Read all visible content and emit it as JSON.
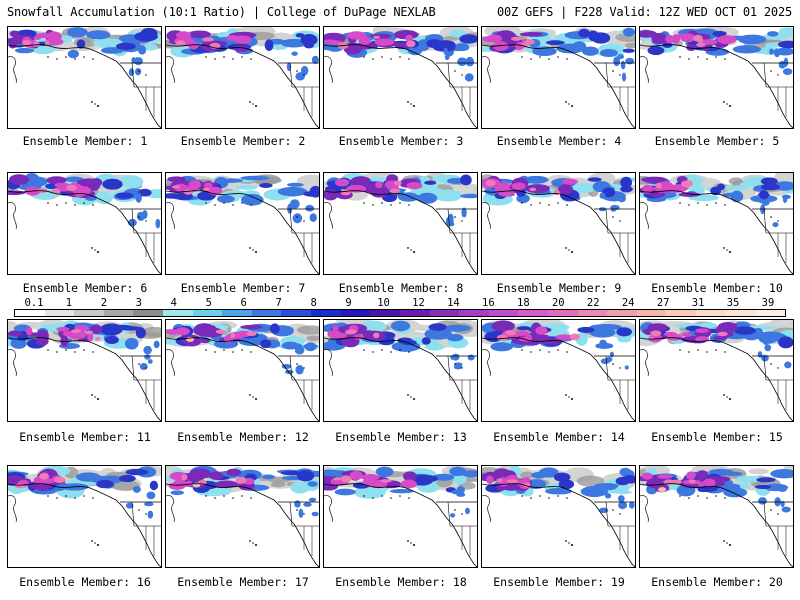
{
  "header": {
    "title_left": "Snowfall Accumulation (10:1 Ratio) | College of DuPage NEXLAB",
    "title_right": "00Z GEFS | F228 Valid: 12Z WED OCT 01 2025"
  },
  "panels": [
    {
      "label": "Ensemble Member: 1"
    },
    {
      "label": "Ensemble Member: 2"
    },
    {
      "label": "Ensemble Member: 3"
    },
    {
      "label": "Ensemble Member: 4"
    },
    {
      "label": "Ensemble Member: 5"
    },
    {
      "label": "Ensemble Member: 6"
    },
    {
      "label": "Ensemble Member: 7"
    },
    {
      "label": "Ensemble Member: 8"
    },
    {
      "label": "Ensemble Member: 9"
    },
    {
      "label": "Ensemble Member: 10"
    },
    {
      "label": "Ensemble Member: 11"
    },
    {
      "label": "Ensemble Member: 12"
    },
    {
      "label": "Ensemble Member: 13"
    },
    {
      "label": "Ensemble Member: 14"
    },
    {
      "label": "Ensemble Member: 15"
    },
    {
      "label": "Ensemble Member: 16"
    },
    {
      "label": "Ensemble Member: 17"
    },
    {
      "label": "Ensemble Member: 18"
    },
    {
      "label": "Ensemble Member: 19"
    },
    {
      "label": "Ensemble Member: 20"
    }
  ],
  "legend": {
    "ticks": [
      "0.1",
      "1",
      "2",
      "3",
      "4",
      "5",
      "6",
      "7",
      "8",
      "9",
      "10",
      "12",
      "14",
      "16",
      "18",
      "20",
      "22",
      "24",
      "27",
      "31",
      "35",
      "39"
    ],
    "colors": [
      "#ffffff",
      "#e6e6e6",
      "#c8c8c8",
      "#a8a8a8",
      "#8c8c8c",
      "#9fe8f0",
      "#6fd0ec",
      "#4aa6e8",
      "#3c78e0",
      "#2a50d8",
      "#1a2ecf",
      "#2418b8",
      "#4a14a8",
      "#6a1eb0",
      "#8a2cbc",
      "#a83cc8",
      "#c24cd0",
      "#d85ccc",
      "#e46cbc",
      "#ee86b6",
      "#f2a0b0",
      "#f6b8a8",
      "#f8ccb8",
      "#faddc8",
      "#fbe6d4",
      "#fdf0e2"
    ]
  },
  "map_colors": {
    "light_gray": "#d4d4d4",
    "mid_gray": "#9a9a9a",
    "cyan": "#8fe0ee",
    "blue": "#3c78e0",
    "indigo": "#2a36c8",
    "purple": "#7a2ab8",
    "magenta": "#d64ac8",
    "pink": "#ee7ab8",
    "peach": "#f6c0a8"
  }
}
